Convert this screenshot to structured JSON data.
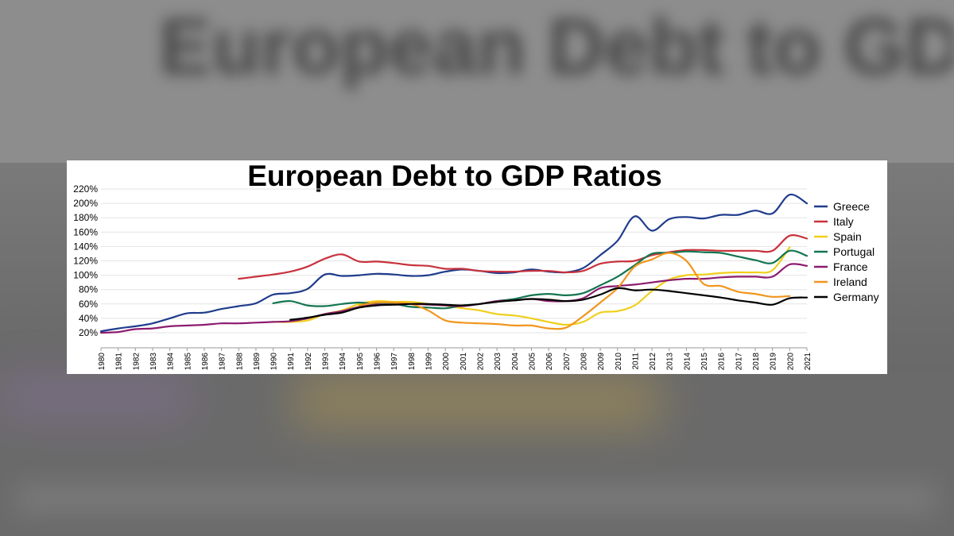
{
  "background": {
    "ghost_title": "European Debt to GDP Ratios"
  },
  "chart_data": {
    "type": "line",
    "title": "European Debt to GDP Ratios",
    "xlabel": "",
    "ylabel": "",
    "xlim": [
      1980,
      2021
    ],
    "ylim": [
      20,
      220
    ],
    "y_ticks": [
      "20%",
      "40%",
      "60%",
      "80%",
      "100%",
      "120%",
      "140%",
      "160%",
      "180%",
      "200%",
      "220%"
    ],
    "x_ticks": [
      "1980",
      "1981",
      "1982",
      "1983",
      "1984",
      "1985",
      "1986",
      "1987",
      "1988",
      "1989",
      "1990",
      "1991",
      "1992",
      "1993",
      "1994",
      "1995",
      "1996",
      "1997",
      "1998",
      "1999",
      "2000",
      "2001",
      "2002",
      "2003",
      "2004",
      "2005",
      "2006",
      "2007",
      "2008",
      "2009",
      "2010",
      "2011",
      "2012",
      "2013",
      "2014",
      "2015",
      "2016",
      "2017",
      "2018",
      "2019",
      "2020",
      "2021"
    ],
    "grid": true,
    "legend_position": "right",
    "series": [
      {
        "name": "Greece",
        "color": "#1f3c8c",
        "x": [
          1980,
          1981,
          1982,
          1983,
          1984,
          1985,
          1986,
          1987,
          1988,
          1989,
          1990,
          1991,
          1992,
          1993,
          1994,
          1995,
          1996,
          1997,
          1998,
          1999,
          2000,
          2001,
          2002,
          2003,
          2004,
          2005,
          2006,
          2007,
          2008,
          2009,
          2010,
          2011,
          2012,
          2013,
          2014,
          2015,
          2016,
          2017,
          2018,
          2019,
          2020,
          2021
        ],
        "y": [
          22,
          26,
          29,
          33,
          40,
          47,
          48,
          53,
          57,
          61,
          73,
          75,
          81,
          101,
          99,
          100,
          102,
          101,
          99,
          100,
          105,
          108,
          106,
          103,
          104,
          108,
          105,
          104,
          110,
          128,
          148,
          182,
          162,
          178,
          181,
          179,
          184,
          184,
          190,
          186,
          212,
          200
        ]
      },
      {
        "name": "Italy",
        "color": "#c8323c",
        "x": [
          1988,
          1989,
          1990,
          1991,
          1992,
          1993,
          1994,
          1995,
          1996,
          1997,
          1998,
          1999,
          2000,
          2001,
          2002,
          2003,
          2004,
          2005,
          2006,
          2007,
          2008,
          2009,
          2010,
          2011,
          2012,
          2013,
          2014,
          2015,
          2016,
          2017,
          2018,
          2019,
          2020,
          2021
        ],
        "y": [
          95,
          98,
          101,
          105,
          112,
          123,
          129,
          119,
          119,
          117,
          114,
          113,
          109,
          109,
          106,
          105,
          105,
          106,
          106,
          104,
          106,
          116,
          119,
          120,
          128,
          132,
          135,
          135,
          134,
          134,
          134,
          134,
          155,
          151
        ]
      },
      {
        "name": "Spain",
        "color": "#f0cf1c",
        "x": [
          1990,
          1991,
          1992,
          1993,
          1994,
          1995,
          1996,
          1997,
          1998,
          1999,
          2000,
          2001,
          2002,
          2003,
          2004,
          2005,
          2006,
          2007,
          2008,
          2009,
          2010,
          2011,
          2012,
          2013,
          2014,
          2015,
          2016,
          2017,
          2018,
          2019,
          2020
        ],
        "y": [
          35,
          35,
          37,
          46,
          51,
          60,
          64,
          63,
          63,
          60,
          58,
          54,
          51,
          46,
          44,
          40,
          35,
          31,
          35,
          48,
          50,
          58,
          78,
          94,
          100,
          101,
          103,
          104,
          104,
          107,
          139
        ]
      },
      {
        "name": "Portugal",
        "color": "#137550",
        "x": [
          1990,
          1991,
          1992,
          1993,
          1994,
          1995,
          1996,
          1997,
          1998,
          1999,
          2000,
          2001,
          2002,
          2003,
          2004,
          2005,
          2006,
          2007,
          2008,
          2009,
          2010,
          2011,
          2012,
          2013,
          2014,
          2015,
          2016,
          2017,
          2018,
          2019,
          2020,
          2021
        ],
        "y": [
          61,
          64,
          58,
          57,
          60,
          62,
          60,
          60,
          56,
          55,
          54,
          58,
          60,
          64,
          67,
          72,
          74,
          72,
          75,
          86,
          98,
          114,
          130,
          131,
          133,
          132,
          131,
          126,
          121,
          117,
          134,
          127
        ]
      },
      {
        "name": "France",
        "color": "#8c1c6e",
        "x": [
          1980,
          1981,
          1982,
          1983,
          1984,
          1985,
          1986,
          1987,
          1988,
          1989,
          1990,
          1991,
          1992,
          1993,
          1994,
          1995,
          1996,
          1997,
          1998,
          1999,
          2000,
          2001,
          2002,
          2003,
          2004,
          2005,
          2006,
          2007,
          2008,
          2009,
          2010,
          2011,
          2012,
          2013,
          2014,
          2015,
          2016,
          2017,
          2018,
          2019,
          2020,
          2021
        ],
        "y": [
          20,
          21,
          25,
          26,
          29,
          30,
          31,
          33,
          33,
          34,
          35,
          36,
          40,
          46,
          50,
          56,
          59,
          59,
          60,
          59,
          58,
          57,
          60,
          64,
          65,
          67,
          64,
          64,
          68,
          82,
          85,
          87,
          90,
          93,
          95,
          95,
          97,
          98,
          98,
          98,
          115,
          113
        ]
      },
      {
        "name": "Ireland",
        "color": "#f0961e",
        "x": [
          1995,
          1996,
          1997,
          1998,
          1999,
          2000,
          2001,
          2002,
          2003,
          2004,
          2005,
          2006,
          2007,
          2008,
          2009,
          2010,
          2011,
          2012,
          2013,
          2014,
          2015,
          2016,
          2017,
          2018,
          2019,
          2020
        ],
        "y": [
          58,
          62,
          62,
          60,
          51,
          37,
          34,
          33,
          32,
          30,
          30,
          26,
          27,
          43,
          62,
          82,
          112,
          122,
          131,
          120,
          88,
          85,
          77,
          74,
          70,
          71
        ]
      },
      {
        "name": "Germany",
        "color": "#000000",
        "x": [
          1991,
          1992,
          1993,
          1994,
          1995,
          1996,
          1997,
          1998,
          1999,
          2000,
          2001,
          2002,
          2003,
          2004,
          2005,
          2006,
          2007,
          2008,
          2009,
          2010,
          2011,
          2012,
          2013,
          2014,
          2015,
          2016,
          2017,
          2018,
          2019,
          2020,
          2021
        ],
        "y": [
          38,
          41,
          45,
          48,
          55,
          58,
          59,
          60,
          60,
          59,
          58,
          60,
          63,
          65,
          67,
          66,
          64,
          66,
          73,
          82,
          79,
          80,
          78,
          75,
          72,
          69,
          65,
          62,
          59,
          68,
          69
        ]
      }
    ]
  }
}
